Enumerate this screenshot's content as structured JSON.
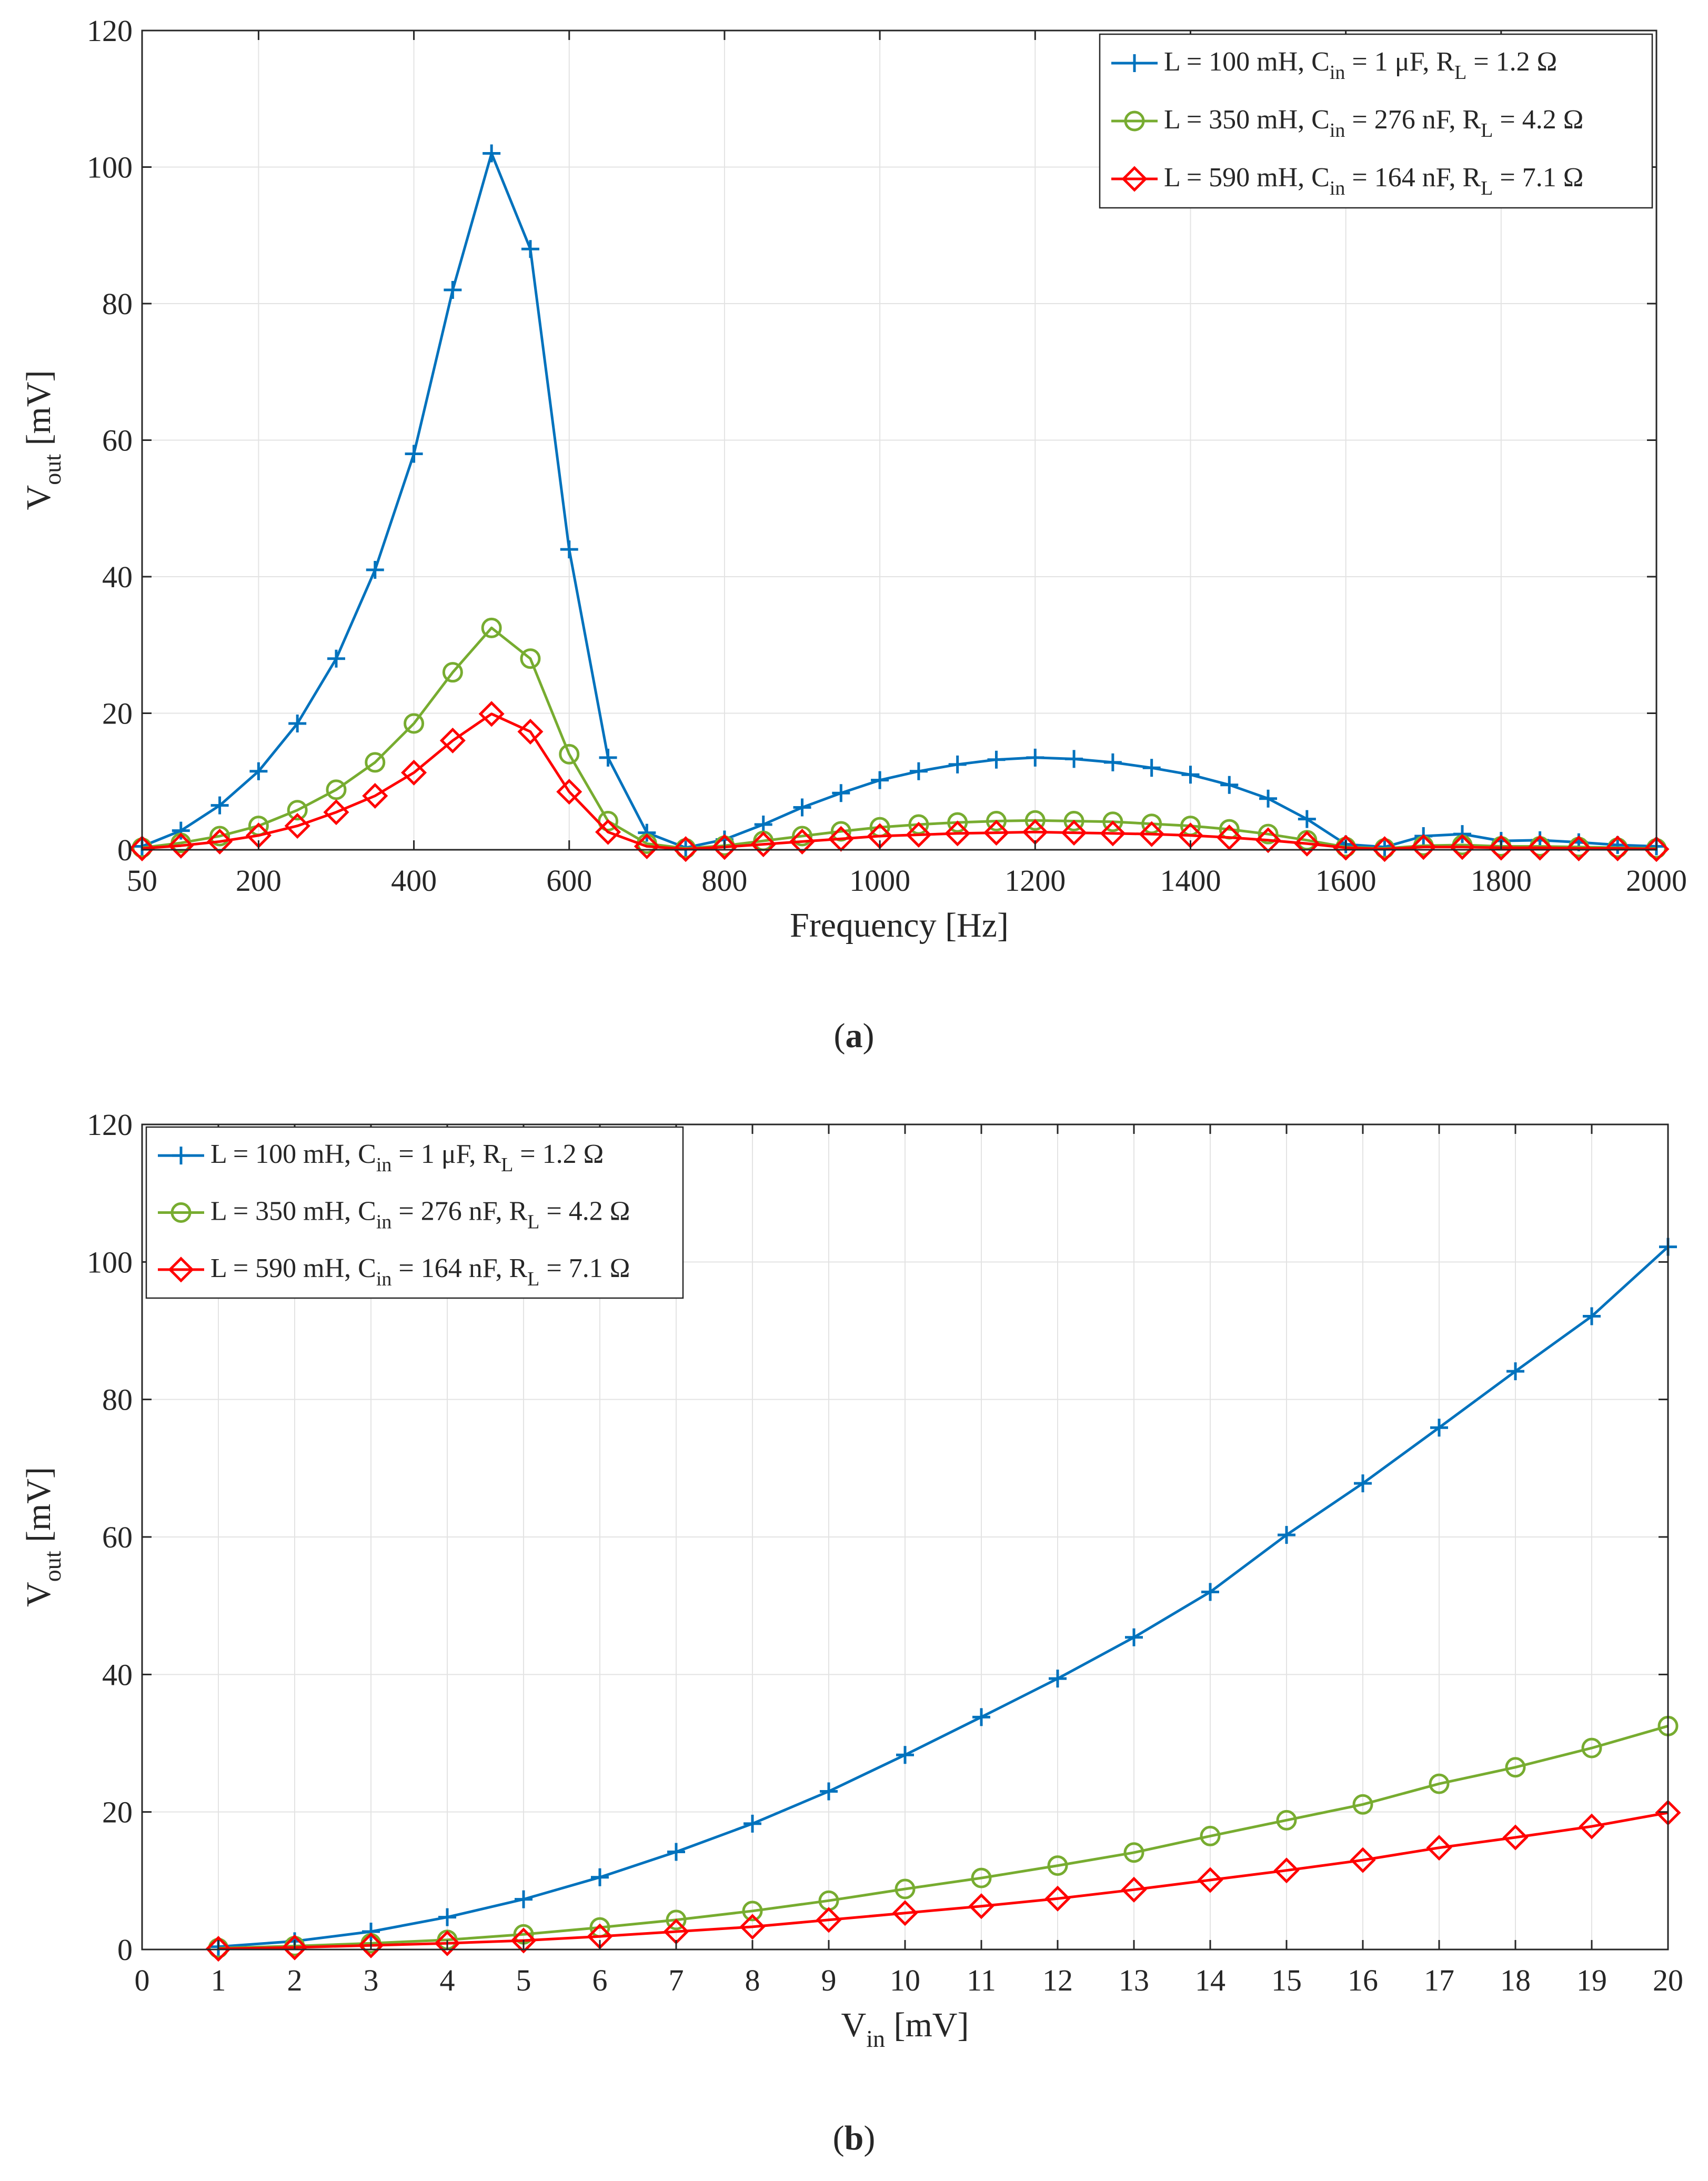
{
  "colors": {
    "series1": "#0072BD",
    "series2": "#77AC30",
    "series3": "#FF0000",
    "grid": "#E3E3E3",
    "axis": "#262626"
  },
  "chart_data": [
    {
      "type": "line",
      "panel_label": "a",
      "xlabel": "Frequency [Hz]",
      "ylabel": "V",
      "ylabel_sub": "out",
      "ylabel_unit": " [mV]",
      "xlim": [
        50,
        2000
      ],
      "ylim": [
        0,
        120
      ],
      "xticks": [
        50,
        200,
        400,
        600,
        800,
        1000,
        1200,
        1400,
        1600,
        1800,
        2000
      ],
      "xtick_labels": [
        "50",
        "200",
        "400",
        "600",
        "800",
        "1000",
        "1200",
        "1400",
        "1600",
        "1800",
        "2000"
      ],
      "yticks": [
        0,
        20,
        40,
        60,
        80,
        100,
        120
      ],
      "ytick_labels": [
        "0",
        "20",
        "40",
        "60",
        "80",
        "100",
        "120"
      ],
      "grid": true,
      "legend_position": "top-right",
      "x": [
        50,
        100,
        150,
        200,
        250,
        300,
        350,
        400,
        450,
        500,
        550,
        600,
        650,
        700,
        750,
        800,
        850,
        900,
        950,
        1000,
        1050,
        1100,
        1150,
        1200,
        1250,
        1300,
        1350,
        1400,
        1450,
        1500,
        1550,
        1600,
        1650,
        1700,
        1750,
        1800,
        1850,
        1900,
        1950,
        2000
      ],
      "series": [
        {
          "name": "L = 100 mH, C_in = 1 µF, R_L = 1.2 Ω",
          "legend": {
            "a": "L = 100 mH, C",
            "a_sub": "in",
            "b": " = 1 μF, R",
            "b_sub": "L",
            "c": " = 1.2 Ω"
          },
          "marker": "plus",
          "color": "#0072BD",
          "values": [
            0.5,
            2.8,
            6.5,
            11.5,
            18.5,
            28,
            41,
            58,
            82,
            102,
            88,
            44,
            13.5,
            2.5,
            0.3,
            1.5,
            3.7,
            6.2,
            8.3,
            10.2,
            11.5,
            12.5,
            13.2,
            13.5,
            13.3,
            12.8,
            12,
            11,
            9.5,
            7.5,
            4.5,
            0.8,
            0.4,
            2,
            2.3,
            1.3,
            1.4,
            1.1,
            0.7,
            0.5
          ]
        },
        {
          "name": "L = 350 mH, C_in = 276 nF, R_L = 4.2 Ω",
          "legend": {
            "a": "L = 350 mH, C",
            "a_sub": "in",
            "b": " = 276 nF, R",
            "b_sub": "L",
            "c": " = 4.2 Ω"
          },
          "marker": "circle",
          "color": "#77AC30",
          "values": [
            0.3,
            1.0,
            2.0,
            3.5,
            5.8,
            8.8,
            12.8,
            18.5,
            26,
            32.5,
            28,
            14,
            4.2,
            0.9,
            0.2,
            0.6,
            1.3,
            2.0,
            2.7,
            3.3,
            3.7,
            4.0,
            4.2,
            4.3,
            4.2,
            4.1,
            3.8,
            3.5,
            3.0,
            2.3,
            1.4,
            0.4,
            0.2,
            0.6,
            0.7,
            0.5,
            0.5,
            0.4,
            0.3,
            0.2
          ]
        },
        {
          "name": "L = 590 mH, C_in = 164 nF, R_L = 7.1 Ω",
          "legend": {
            "a": "L = 590 mH, C",
            "a_sub": "in",
            "b": " = 164 nF, R",
            "b_sub": "L",
            "c": " = 7.1 Ω"
          },
          "marker": "diamond",
          "color": "#FF0000",
          "values": [
            0.2,
            0.6,
            1.2,
            2.1,
            3.5,
            5.5,
            7.9,
            11.3,
            16,
            19.9,
            17.3,
            8.5,
            2.6,
            0.5,
            0.1,
            0.4,
            0.8,
            1.2,
            1.6,
            2.0,
            2.2,
            2.4,
            2.5,
            2.6,
            2.5,
            2.4,
            2.3,
            2.1,
            1.8,
            1.4,
            0.9,
            0.3,
            0.1,
            0.4,
            0.4,
            0.3,
            0.3,
            0.2,
            0.2,
            0.1
          ]
        }
      ]
    },
    {
      "type": "line",
      "panel_label": "b",
      "xlabel": "V",
      "xlabel_sub": "in",
      "xlabel_unit": " [mV]",
      "ylabel": "V",
      "ylabel_sub": "out",
      "ylabel_unit": " [mV]",
      "xlim": [
        0,
        20
      ],
      "ylim": [
        0,
        120
      ],
      "xticks": [
        0,
        1,
        2,
        3,
        4,
        5,
        6,
        7,
        8,
        9,
        10,
        11,
        12,
        13,
        14,
        15,
        16,
        17,
        18,
        19,
        20
      ],
      "xtick_labels": [
        "0",
        "1",
        "2",
        "3",
        "4",
        "5",
        "6",
        "7",
        "8",
        "9",
        "10",
        "11",
        "12",
        "13",
        "14",
        "15",
        "16",
        "17",
        "18",
        "19",
        "20"
      ],
      "yticks": [
        0,
        20,
        40,
        60,
        80,
        100,
        120
      ],
      "ytick_labels": [
        "0",
        "20",
        "40",
        "60",
        "80",
        "100",
        "120"
      ],
      "grid": true,
      "legend_position": "top-left",
      "x": [
        1,
        2,
        3,
        4,
        5,
        6,
        7,
        8,
        9,
        10,
        11,
        12,
        13,
        14,
        15,
        16,
        17,
        18,
        19,
        20
      ],
      "series": [
        {
          "name": "L = 100 mH, C_in = 1 µF, R_L = 1.2 Ω",
          "legend": {
            "a": "L = 100 mH, C",
            "a_sub": "in",
            "b": " = 1 μF, R",
            "b_sub": "L",
            "c": " = 1.2 Ω"
          },
          "marker": "plus",
          "color": "#0072BD",
          "values": [
            0.4,
            1.2,
            2.6,
            4.7,
            7.3,
            10.5,
            14.2,
            18.3,
            23,
            28.3,
            33.8,
            39.4,
            45.4,
            52,
            60.3,
            67.8,
            75.9,
            84.1,
            92.1,
            102.2
          ]
        },
        {
          "name": "L = 350 mH, C_in = 276 nF, R_L = 4.2 Ω",
          "legend": {
            "a": "L = 350 mH, C",
            "a_sub": "in",
            "b": " = 276 nF, R",
            "b_sub": "L",
            "c": " = 4.2 Ω"
          },
          "marker": "circle",
          "color": "#77AC30",
          "values": [
            0.2,
            0.5,
            0.9,
            1.4,
            2.2,
            3.2,
            4.3,
            5.6,
            7.1,
            8.8,
            10.4,
            12.2,
            14.1,
            16.5,
            18.8,
            21.1,
            24.1,
            26.5,
            29.3,
            32.5
          ]
        },
        {
          "name": "L = 590 mH, C_in = 164 nF, R_L = 7.1 Ω",
          "legend": {
            "a": "L = 590 mH, C",
            "a_sub": "in",
            "b": " = 164 nF, R",
            "b_sub": "L",
            "c": " = 7.1 Ω"
          },
          "marker": "diamond",
          "color": "#FF0000",
          "values": [
            0.1,
            0.3,
            0.6,
            0.9,
            1.3,
            1.9,
            2.6,
            3.3,
            4.3,
            5.3,
            6.3,
            7.4,
            8.7,
            10.1,
            11.5,
            13,
            14.8,
            16.3,
            17.9,
            19.9
          ]
        }
      ]
    }
  ]
}
